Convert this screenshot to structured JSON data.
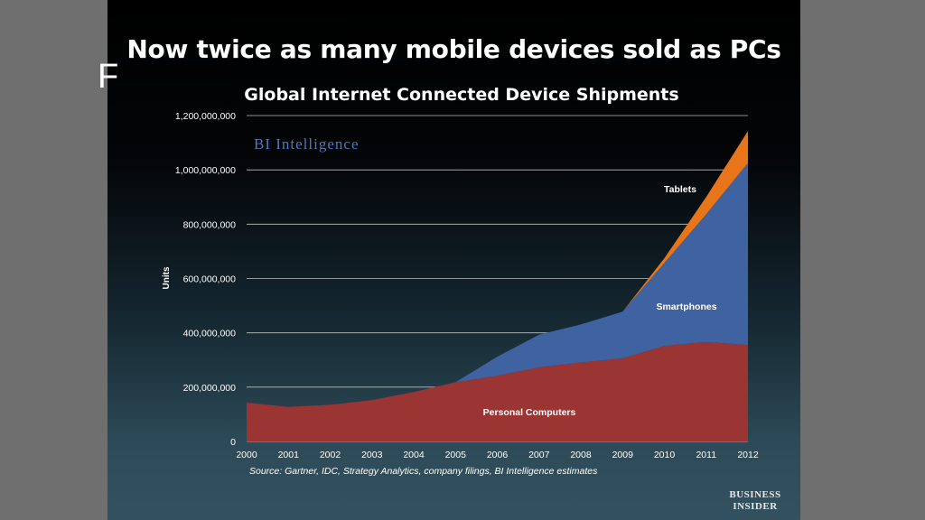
{
  "slide": {
    "title": "Now twice as many mobile devices sold as PCs",
    "behind_text": "F"
  },
  "logo": {
    "line1": "BUSINESS",
    "line2": "INSIDER"
  },
  "colors": {
    "pcs": "#9b3534",
    "smartphones": "#3f62a0",
    "tablets": "#e8751a",
    "brand_watermark": "#4f79b8"
  },
  "chart_data": {
    "type": "area",
    "stacked": true,
    "title": "Global Internet Connected Device Shipments",
    "xlabel": "",
    "ylabel": "Units",
    "watermark": "BI Intelligence",
    "source": "Source: Gartner, IDC, Strategy Analytics, company filings, BI Intelligence estimates",
    "x": [
      "2000",
      "2001",
      "2002",
      "2003",
      "2004",
      "2005",
      "2006",
      "2007",
      "2008",
      "2009",
      "2010",
      "2011",
      "2012"
    ],
    "ylim": [
      0,
      1200000000
    ],
    "yticks": [
      0,
      200000000,
      400000000,
      600000000,
      800000000,
      1000000000,
      1200000000
    ],
    "ytick_labels": [
      "0",
      "200,000,000",
      "400,000,000",
      "600,000,000",
      "800,000,000",
      "1,000,000,000",
      "1,200,000,000"
    ],
    "grid": true,
    "series": [
      {
        "name": "Personal Computers",
        "values": [
          143000000,
          127000000,
          135000000,
          152000000,
          182000000,
          218000000,
          242000000,
          273000000,
          291000000,
          306000000,
          352000000,
          366000000,
          355000000
        ]
      },
      {
        "name": "Smartphones",
        "values": [
          0,
          0,
          0,
          0,
          0,
          0,
          70000000,
          120000000,
          140000000,
          172000000,
          305000000,
          470000000,
          670000000
        ]
      },
      {
        "name": "Tablets",
        "values": [
          0,
          0,
          0,
          0,
          0,
          0,
          0,
          0,
          0,
          0,
          18000000,
          64000000,
          118000000
        ]
      }
    ],
    "series_labels": [
      "Personal Computers",
      "Smartphones",
      "Tablets"
    ]
  }
}
